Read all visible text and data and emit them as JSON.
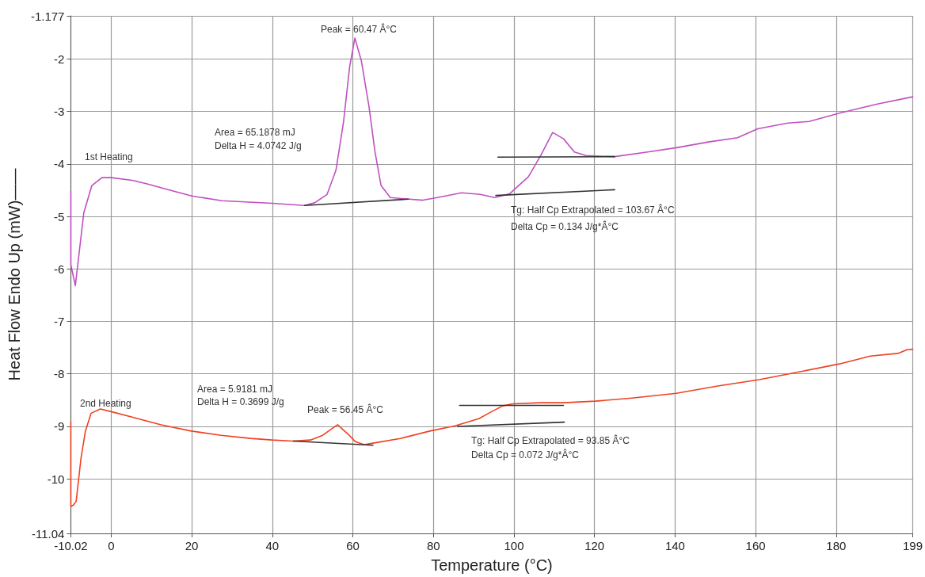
{
  "chart_data": {
    "type": "line",
    "xlabel": "Temperature (°C)",
    "ylabel": "Heat Flow Endo Up (mW)——",
    "xlim": [
      -10.02,
      199
    ],
    "xticks": [
      -10.02,
      0,
      20,
      40,
      60,
      80,
      100,
      120,
      140,
      160,
      180,
      199
    ],
    "ylim": [
      -11.04,
      -1.177
    ],
    "yticks": [
      -11.04,
      -10,
      -9,
      -8,
      -7,
      -6,
      -5,
      -4,
      -3,
      -2,
      -1.177
    ],
    "grid": true,
    "marker": "none",
    "line_style": "solid",
    "series": [
      {
        "color": "#c050c0",
        "x": [
          -10.02,
          -10.02,
          -8.9,
          -6.8,
          -4.8,
          -2.3,
          0,
          5.2,
          8.9,
          14.1,
          20,
          27.5,
          40,
          48,
          50.5,
          53.6,
          55.8,
          57.7,
          59.2,
          60.5,
          62.1,
          64,
          65.5,
          67,
          69.3,
          74,
          77.4,
          81,
          87,
          91.6,
          95.2,
          98.9,
          103.6,
          106.7,
          109.6,
          112.3,
          115,
          117.9,
          125,
          133.2,
          140.3,
          148.3,
          155.5,
          160.5,
          168,
          173.3,
          180.8,
          190,
          199
        ],
        "values": [
          -4.52,
          -5.92,
          -6.32,
          -4.93,
          -4.41,
          -4.26,
          -4.26,
          -4.31,
          -4.38,
          -4.49,
          -4.61,
          -4.7,
          -4.75,
          -4.79,
          -4.74,
          -4.58,
          -4.12,
          -3.19,
          -2.15,
          -1.6,
          -2.03,
          -2.9,
          -3.77,
          -4.41,
          -4.64,
          -4.67,
          -4.69,
          -4.64,
          -4.55,
          -4.58,
          -4.64,
          -4.57,
          -4.24,
          -3.83,
          -3.4,
          -3.52,
          -3.77,
          -3.84,
          -3.86,
          -3.77,
          -3.69,
          -3.58,
          -3.5,
          -3.33,
          -3.22,
          -3.19,
          -3.03,
          -2.86,
          -2.72
        ]
      },
      {
        "color": "#f04020",
        "x": [
          -10.02,
          -10.02,
          -9.4,
          -8.7,
          -7.5,
          -6.4,
          -5,
          -2.7,
          0,
          5,
          12.4,
          19.9,
          27.3,
          34.6,
          39.9,
          45,
          49.5,
          52.5,
          56.2,
          59.1,
          60.6,
          62.8,
          65,
          71.8,
          79.1,
          85.4,
          91.4,
          93.7,
          97.2,
          99.7,
          106.7,
          112.3,
          120.2,
          129.3,
          140.3,
          150.6,
          160.9,
          171,
          180.8,
          188.5,
          195.3,
          197.6,
          199
        ],
        "values": [
          -8.91,
          -10.53,
          -10.5,
          -10.43,
          -9.61,
          -9.09,
          -8.75,
          -8.67,
          -8.72,
          -8.82,
          -8.97,
          -9.09,
          -9.17,
          -9.23,
          -9.26,
          -9.28,
          -9.26,
          -9.17,
          -8.97,
          -9.17,
          -9.29,
          -9.35,
          -9.32,
          -9.23,
          -9.09,
          -8.99,
          -8.85,
          -8.75,
          -8.61,
          -8.57,
          -8.55,
          -8.55,
          -8.52,
          -8.46,
          -8.37,
          -8.23,
          -8.11,
          -7.96,
          -7.81,
          -7.66,
          -7.61,
          -7.54,
          -7.53
        ]
      },
      {
        "color": "#333333",
        "x": [
          48,
          73.8
        ],
        "values": [
          -4.79,
          -4.67
        ]
      },
      {
        "color": "#333333",
        "x": [
          95.5,
          125
        ],
        "values": [
          -4.6,
          -4.49
        ]
      },
      {
        "color": "#333333",
        "x": [
          96,
          125
        ],
        "values": [
          -3.87,
          -3.86
        ]
      },
      {
        "color": "#333333",
        "x": [
          45.2,
          65
        ],
        "values": [
          -9.28,
          -9.36
        ]
      },
      {
        "color": "#333333",
        "x": [
          86,
          112.5
        ],
        "values": [
          -9.0,
          -8.92
        ]
      },
      {
        "color": "#333333",
        "x": [
          86.5,
          112.3
        ],
        "values": [
          -8.6,
          -8.6
        ]
      }
    ],
    "annotations": [
      "Peak = 60.47 Â°C",
      "Area = 65.1878 mJ",
      "Delta H = 4.0742 J/g",
      "1st Heating",
      "Tg: Half Cp Extrapolated = 103.67 Â°C",
      "Delta Cp = 0.134 J/g*Â°C",
      "2nd Heating",
      "Area = 5.9181 mJ",
      "Delta H = 0.3699 J/g",
      "Peak = 56.45 Â°C",
      "Tg: Half Cp Extrapolated = 93.85 Â°C",
      "Delta Cp = 0.072 J/g*Â°C"
    ]
  }
}
